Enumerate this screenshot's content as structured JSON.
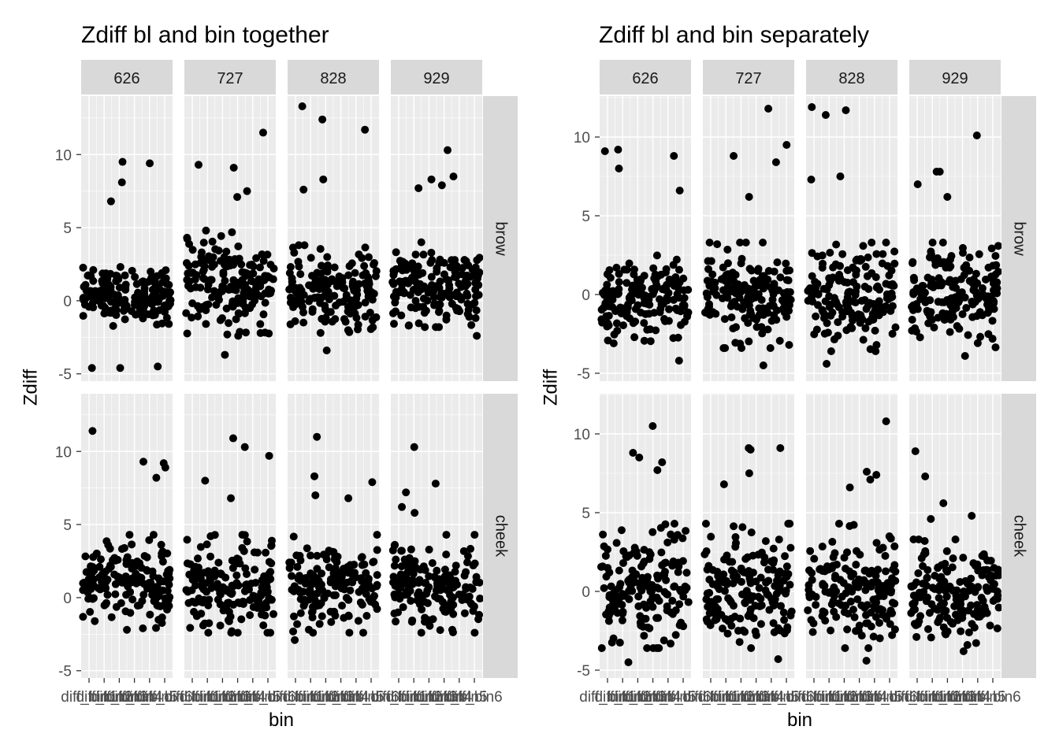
{
  "chart_data": [
    {
      "type": "scatter",
      "title": "Zdiff bl and bin together",
      "xlabel": "bin",
      "ylabel": "Zdiff",
      "columns": [
        "626",
        "727",
        "828",
        "929"
      ],
      "rows": [
        "brow",
        "cheek"
      ],
      "y_ticks": [
        -5,
        0,
        5,
        10
      ],
      "x_tick_labels": [
        "diff_bin1",
        "diff_bin2",
        "diff_bin3",
        "diff_bin4",
        "diff_bin5",
        "diff_bin6"
      ],
      "ylim": [
        -5.5,
        14
      ],
      "panels": {
        "brow": {
          "626": {
            "bulk": [
              -1.2,
              2.0
            ],
            "outliers": [
              -4.6,
              -4.5,
              -4.6,
              9.4,
              9.5,
              8.1,
              6.8
            ]
          },
          "727": {
            "bulk": [
              -1.8,
              4.0
            ],
            "outliers": [
              -3.7,
              9.3,
              9.1,
              11.5,
              7.1,
              7.5
            ]
          },
          "828": {
            "bulk": [
              -1.6,
              3.0
            ],
            "outliers": [
              -3.4,
              12.4,
              13.3,
              11.7,
              8.3,
              7.6
            ]
          },
          "929": {
            "bulk": [
              -1.2,
              3.2
            ],
            "outliers": [
              -2.4,
              10.3,
              8.5,
              8.3,
              7.9,
              7.7
            ]
          }
        },
        "cheek": {
          "626": {
            "bulk": [
              -1.5,
              3.5
            ],
            "outliers": [
              -2.2,
              11.4,
              9.3,
              9.2,
              8.9,
              8.2
            ]
          },
          "727": {
            "bulk": [
              -1.8,
              3.5
            ],
            "outliers": [
              -1.9,
              10.3,
              10.9,
              9.7,
              8.0,
              6.8
            ]
          },
          "828": {
            "bulk": [
              -1.8,
              3.5
            ],
            "outliers": [
              -2.9,
              11.0,
              8.3,
              7.9,
              7.0,
              6.8
            ]
          },
          "929": {
            "bulk": [
              -1.8,
              3.5
            ],
            "outliers": [
              -2.2,
              10.3,
              7.8,
              6.2,
              7.2,
              5.8
            ]
          }
        }
      }
    },
    {
      "type": "scatter",
      "title": "Zdiff bl and bin separately",
      "xlabel": "bin",
      "ylabel": "Zdiff",
      "columns": [
        "626",
        "727",
        "828",
        "929"
      ],
      "rows": [
        "brow",
        "cheek"
      ],
      "y_ticks": [
        -5,
        0,
        5,
        10
      ],
      "x_tick_labels": [
        "diff_bin1",
        "diff_bin2",
        "diff_bin3",
        "diff_bin4",
        "diff_bin5",
        "diff_bin6"
      ],
      "ylim": [
        -5.5,
        12.6
      ],
      "panels": {
        "brow": {
          "626": {
            "bulk": [
              -2.5,
              2.0
            ],
            "outliers": [
              -4.2,
              9.2,
              9.1,
              8.8,
              8.0,
              6.6
            ]
          },
          "727": {
            "bulk": [
              -2.8,
              2.5
            ],
            "outliers": [
              -4.5,
              11.8,
              9.5,
              8.8,
              8.4,
              6.2
            ]
          },
          "828": {
            "bulk": [
              -3.0,
              2.5
            ],
            "outliers": [
              -4.4,
              11.9,
              11.7,
              11.4,
              7.5,
              7.3
            ]
          },
          "929": {
            "bulk": [
              -2.8,
              2.5
            ],
            "outliers": [
              -3.9,
              10.1,
              7.8,
              7.8,
              7.0,
              6.2
            ]
          }
        },
        "cheek": {
          "626": {
            "bulk": [
              -3.0,
              3.5
            ],
            "outliers": [
              -4.5,
              10.5,
              8.8,
              8.5,
              8.2,
              7.7
            ]
          },
          "727": {
            "bulk": [
              -3.0,
              3.5
            ],
            "outliers": [
              -4.3,
              9.1,
              9.1,
              9.0,
              7.5,
              6.8
            ]
          },
          "828": {
            "bulk": [
              -3.0,
              3.5
            ],
            "outliers": [
              -4.4,
              10.8,
              7.6,
              7.4,
              7.1,
              6.6
            ]
          },
          "929": {
            "bulk": [
              -2.8,
              2.5
            ],
            "outliers": [
              -3.8,
              8.9,
              7.3,
              5.6,
              4.8,
              4.6
            ]
          }
        }
      }
    }
  ]
}
